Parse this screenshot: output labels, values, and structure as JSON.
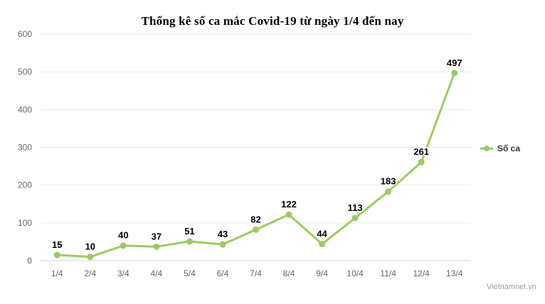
{
  "chart_data": {
    "type": "line",
    "title": "Thống kê số ca mắc Covid-19 từ ngày 1/4 đến nay",
    "categories": [
      "1/4",
      "2/4",
      "3/4",
      "4/4",
      "5/4",
      "6/4",
      "7/4",
      "8/4",
      "9/4",
      "10/4",
      "11/4",
      "12/4",
      "13/4"
    ],
    "series": [
      {
        "name": "Số ca",
        "values": [
          15,
          10,
          40,
          37,
          51,
          43,
          82,
          122,
          44,
          113,
          183,
          261,
          497
        ]
      }
    ],
    "xlabel": "",
    "ylabel": "",
    "ylim": [
      0,
      600
    ],
    "y_tick_interval": 100,
    "grid": "horizontal",
    "legend_position": "right",
    "data_labels": true
  },
  "watermark": "Vietnamnet.vn",
  "colors": {
    "series": "#9BCB63",
    "grid": "#E6E6E6",
    "axis_line": "#CCD6EB",
    "tick_label": "#666666",
    "data_label": "#000000",
    "legend_text": "#333333",
    "title": "#000000",
    "watermark": "#9AA0A6",
    "background": "#FFFFFF"
  }
}
